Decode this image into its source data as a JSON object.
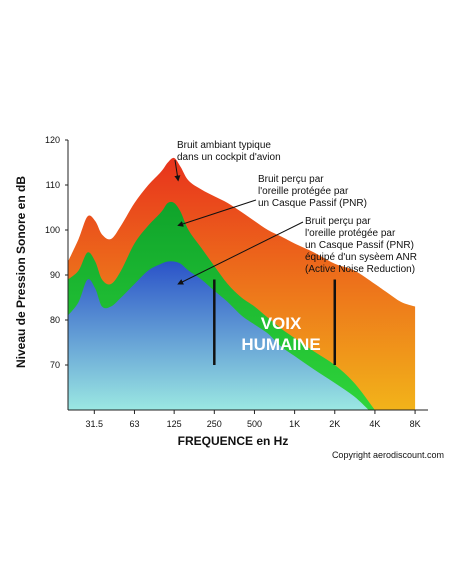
{
  "chart_data": {
    "type": "area",
    "title": "",
    "xlabel": "FREQUENCE en Hz",
    "ylabel": "Niveau de Pression Sonore en dB",
    "ylim": [
      60,
      120
    ],
    "y_ticks": [
      70,
      80,
      90,
      100,
      110,
      120
    ],
    "x_ticks": [
      "31.5",
      "63",
      "125",
      "250",
      "500",
      "1K",
      "2K",
      "4K",
      "8K"
    ],
    "x_tick_positions": [
      31.5,
      63,
      125,
      250,
      500,
      1000,
      2000,
      4000,
      8000
    ],
    "x_scale": "log",
    "grid": false,
    "series": [
      {
        "label": "Bruit ambiant typique dans un cockpit d'avion",
        "color_top": "#e8321c",
        "color_bottom": "#f2b31a",
        "x": [
          20,
          24,
          28,
          32,
          36,
          42,
          50,
          63,
          80,
          100,
          112,
          125,
          140,
          160,
          200,
          250,
          315,
          400,
          500,
          630,
          800,
          1000,
          1400,
          2000,
          2800,
          4000,
          5000,
          6300,
          8000
        ],
        "y": [
          93,
          98,
          103,
          102,
          99,
          98,
          101,
          106,
          110,
          113,
          115,
          116,
          114,
          111,
          109,
          107.5,
          106,
          104,
          102,
          100,
          98.5,
          97,
          95,
          92.5,
          91,
          88,
          86,
          84,
          83
        ]
      },
      {
        "label": "Bruit perçu par l'oreille protégée par un Casque Passif (PNR)",
        "color_top": "#0fa32b",
        "color_bottom": "#2fd53a",
        "x": [
          20,
          24,
          28,
          32,
          36,
          42,
          50,
          63,
          80,
          100,
          112,
          125,
          140,
          160,
          200,
          250,
          315,
          400,
          500,
          630,
          800,
          1000,
          1400,
          2000,
          2800,
          4000
        ],
        "y": [
          89,
          91,
          95,
          93,
          89,
          88,
          91,
          97,
          101,
          104,
          106,
          106,
          104,
          100,
          96,
          92,
          88,
          85,
          83,
          80.5,
          78,
          76,
          73,
          70,
          66,
          60
        ]
      },
      {
        "label": "Bruit perçu par l'oreille protégée par un Casque Passif (PNR) équipé d'un sysèem ANR (Active Noise Reduction)",
        "color_top": "#2a52c8",
        "color_bottom": "#9be8e2",
        "x": [
          20,
          24,
          28,
          32,
          36,
          42,
          50,
          63,
          80,
          100,
          112,
          125,
          140,
          160,
          200,
          250,
          315,
          400,
          500,
          630,
          800,
          1000,
          1400,
          2000,
          2800,
          3600
        ],
        "y": [
          81,
          84,
          89,
          87,
          83,
          83,
          85,
          88,
          91,
          92.5,
          93,
          93,
          92.5,
          91,
          89,
          86.5,
          84,
          81,
          79,
          77,
          74,
          72,
          69,
          66,
          63,
          60
        ]
      }
    ],
    "voice_band": {
      "label_line1": "VOIX",
      "label_line2": "HUMAINE",
      "markers": [
        {
          "x": 250,
          "y_from": 70,
          "y_to": 89
        },
        {
          "x": 2000,
          "y_from": 70,
          "y_to": 89
        }
      ]
    },
    "annotations": [
      {
        "lines": [
          "Bruit ambiant typique",
          "dans un cockpit d'avion"
        ],
        "series": 0,
        "points_to_x": 125,
        "points_to_y": 111
      },
      {
        "lines": [
          "Bruit perçu par",
          "l'oreille protégée par",
          "un Casque Passif (PNR)"
        ],
        "series": 1,
        "points_to_x": 125,
        "points_to_y": 101
      },
      {
        "lines": [
          "Bruit perçu par",
          "l'oreille protégée par",
          "un Casque Passif (PNR)",
          "équipé d'un sysèem ANR",
          "(Active Noise Reduction)"
        ],
        "series": 2,
        "points_to_x": 125,
        "points_to_y": 88
      }
    ],
    "copyright": "Copyright aerodiscount.com"
  }
}
